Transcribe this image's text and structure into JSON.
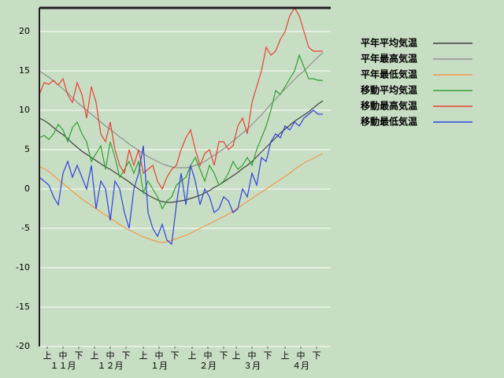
{
  "chart_data": {
    "type": "line",
    "x": [
      0,
      3,
      6,
      9,
      12,
      15,
      18,
      21,
      24,
      27,
      30,
      33,
      36,
      39,
      42,
      45,
      48,
      51,
      54,
      57,
      60,
      63,
      66,
      69,
      72,
      75,
      78,
      81,
      84,
      87,
      90,
      93,
      96,
      99,
      102,
      105,
      108,
      111,
      114,
      117,
      120,
      123,
      126,
      129,
      132,
      135,
      138,
      141,
      144,
      147,
      150,
      153,
      156,
      159,
      162,
      165,
      168,
      171,
      174,
      177,
      180
    ],
    "xlim": [
      0,
      185
    ],
    "xticks": [
      {
        "value": 5,
        "label": "上"
      },
      {
        "value": 15,
        "label": "中"
      },
      {
        "value": 25,
        "label": "下"
      },
      {
        "value": 35,
        "label": "上"
      },
      {
        "value": 45,
        "label": "中"
      },
      {
        "value": 55,
        "label": "下"
      },
      {
        "value": 66,
        "label": "上"
      },
      {
        "value": 76,
        "label": "中"
      },
      {
        "value": 86,
        "label": "下"
      },
      {
        "value": 97,
        "label": "上"
      },
      {
        "value": 107,
        "label": "中"
      },
      {
        "value": 117,
        "label": "下"
      },
      {
        "value": 125,
        "label": "上"
      },
      {
        "value": 135,
        "label": "中"
      },
      {
        "value": 145,
        "label": "下"
      },
      {
        "value": 156,
        "label": "上"
      },
      {
        "value": 166,
        "label": "中"
      },
      {
        "value": 176,
        "label": "下"
      }
    ],
    "month_labels": [
      {
        "value": 15,
        "label": "１１月"
      },
      {
        "value": 45,
        "label": "１２月"
      },
      {
        "value": 76,
        "label": "１月"
      },
      {
        "value": 107,
        "label": "２月"
      },
      {
        "value": 135,
        "label": "３月"
      },
      {
        "value": 166,
        "label": "４月"
      }
    ],
    "ylim": [
      -20,
      23
    ],
    "yticks": [
      -20,
      -15,
      -10,
      -5,
      0,
      5,
      10,
      15,
      20
    ],
    "grid": true,
    "legend": "right",
    "series": [
      {
        "name": "平年平均気温",
        "color": "#404040",
        "values": [
          9,
          8.7,
          8.3,
          7.8,
          7.3,
          6.9,
          6.4,
          5.8,
          5.3,
          4.8,
          4.4,
          4,
          3.6,
          3.2,
          2.8,
          2.5,
          2.1,
          1.7,
          1.3,
          0.9,
          0.4,
          0,
          -0.4,
          -0.8,
          -1.1,
          -1.4,
          -1.6,
          -1.7,
          -1.7,
          -1.6,
          -1.5,
          -1.4,
          -1.2,
          -1,
          -0.8,
          -0.5,
          -0.2,
          0.2,
          0.5,
          0.9,
          1.3,
          1.7,
          2.1,
          2.6,
          3,
          3.5,
          4.1,
          4.7,
          5.3,
          5.9,
          6.5,
          7.1,
          7.6,
          8.1,
          8.6,
          9,
          9.4,
          9.8,
          10.3,
          10.8,
          11.2
        ]
      },
      {
        "name": "平年最高気温",
        "color": "#909090",
        "values": [
          15,
          14.6,
          14.2,
          13.7,
          13.2,
          12.7,
          12.2,
          11.6,
          11,
          10.5,
          10,
          9.5,
          9,
          8.5,
          8,
          7.6,
          7.1,
          6.6,
          6.2,
          5.7,
          5.3,
          4.9,
          4.5,
          4.1,
          3.8,
          3.5,
          3.2,
          3,
          2.8,
          2.7,
          2.7,
          2.7,
          2.8,
          3,
          3.2,
          3.5,
          3.9,
          4.3,
          4.7,
          5.1,
          5.6,
          6.1,
          6.6,
          7.1,
          7.6,
          8.2,
          8.8,
          9.4,
          10.1,
          10.8,
          11.4,
          12.1,
          12.7,
          13.3,
          13.9,
          14.5,
          15,
          15.6,
          16.2,
          16.8,
          17.3
        ]
      },
      {
        "name": "平年最低気温",
        "color": "#f09848",
        "values": [
          2.8,
          2.6,
          2.2,
          1.7,
          1.2,
          0.7,
          0.2,
          -0.3,
          -0.8,
          -1.3,
          -1.7,
          -2.1,
          -2.5,
          -2.9,
          -3.3,
          -3.7,
          -4.1,
          -4.5,
          -4.9,
          -5.2,
          -5.5,
          -5.8,
          -6.1,
          -6.3,
          -6.5,
          -6.7,
          -6.8,
          -6.7,
          -6.5,
          -6.3,
          -6.1,
          -5.9,
          -5.6,
          -5.3,
          -5,
          -4.7,
          -4.4,
          -4.1,
          -3.8,
          -3.5,
          -3.2,
          -2.8,
          -2.4,
          -2,
          -1.6,
          -1.2,
          -0.8,
          -0.4,
          0,
          0.4,
          0.8,
          1.2,
          1.6,
          2,
          2.5,
          2.9,
          3.3,
          3.6,
          3.9,
          4.2,
          4.5
        ]
      },
      {
        "name": "移動平均気温",
        "color": "#30a030",
        "values": [
          6.5,
          6.8,
          6.3,
          7,
          8.2,
          7.5,
          6,
          7.8,
          8.5,
          7,
          6,
          3.5,
          4.5,
          5.5,
          2.5,
          6,
          4,
          1.5,
          2.5,
          3.5,
          2,
          3.5,
          -0.5,
          1,
          0,
          -1,
          -2.5,
          -1.5,
          -1,
          0.5,
          1,
          1.5,
          3,
          4,
          2.5,
          1,
          3,
          2,
          0.5,
          1,
          2,
          3.5,
          2.5,
          3,
          4,
          3,
          5,
          6.5,
          8,
          10,
          12.5,
          12,
          13,
          14,
          15,
          17,
          15.5,
          14,
          14,
          13.8,
          13.8
        ]
      },
      {
        "name": "移動最高気温",
        "color": "#e84030",
        "values": [
          12,
          13.5,
          13.3,
          13.8,
          13.2,
          14,
          12,
          11,
          13.5,
          12,
          9,
          13,
          11,
          7,
          6,
          8.5,
          5,
          3,
          2,
          5,
          3,
          5,
          2,
          2.5,
          3,
          1,
          0,
          1.5,
          2.5,
          3,
          5,
          6.5,
          7.5,
          5,
          3,
          4.5,
          5,
          3,
          6,
          6,
          5,
          5.5,
          8,
          9,
          7,
          11,
          13,
          15,
          18,
          17,
          17.5,
          19,
          20,
          22,
          23,
          22,
          20,
          18,
          17.5,
          17.5,
          17.5
        ]
      },
      {
        "name": "移動最低気温",
        "color": "#3040e0",
        "values": [
          1.5,
          1,
          0.5,
          -1,
          -2,
          2,
          3.5,
          1.5,
          3,
          1.5,
          0,
          3,
          -2.5,
          1,
          0,
          -4,
          1,
          0,
          -3,
          -5,
          0,
          2,
          5.5,
          -3,
          -5,
          -6,
          -4.5,
          -6.5,
          -7,
          -2,
          2,
          -2,
          3,
          1,
          -2,
          0,
          -1,
          -3,
          -2.5,
          -1,
          -1.5,
          -3,
          -2.5,
          0,
          -1,
          2,
          0.5,
          4,
          3.5,
          6,
          7,
          6.5,
          8,
          7.5,
          8.5,
          8,
          9,
          9.5,
          10,
          9.5,
          9.5
        ]
      }
    ]
  }
}
